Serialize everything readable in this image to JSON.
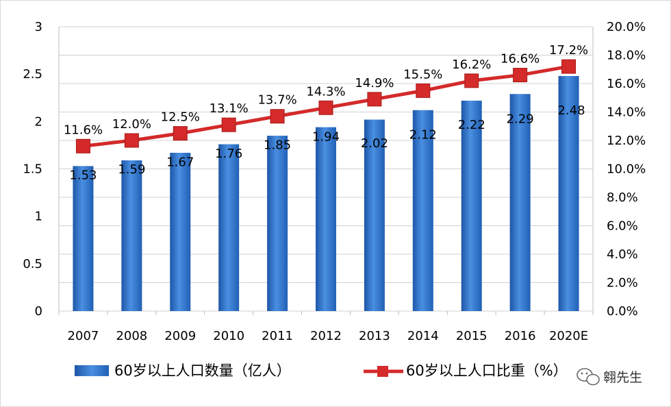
{
  "chart_data": {
    "type": "bar+line",
    "categories": [
      "2007",
      "2008",
      "2009",
      "2010",
      "2011",
      "2012",
      "2013",
      "2014",
      "2015",
      "2016",
      "2020E"
    ],
    "bar_series": {
      "name": "60岁以上人口数量（亿人）",
      "values": [
        1.53,
        1.59,
        1.67,
        1.76,
        1.85,
        1.94,
        2.02,
        2.12,
        2.22,
        2.29,
        2.48
      ],
      "labels": [
        "1.53",
        "1.59",
        "1.67",
        "1.76",
        "1.85",
        "1.94",
        "2.02",
        "2.12",
        "2.22",
        "2.29",
        "2.48"
      ],
      "color": "#2e6bc2"
    },
    "line_series": {
      "name": "60岁以上人口比重（%）",
      "values": [
        11.6,
        12.0,
        12.5,
        13.1,
        13.7,
        14.3,
        14.9,
        15.5,
        16.2,
        16.6,
        17.2
      ],
      "labels": [
        "11.6%",
        "12.0%",
        "12.5%",
        "13.1%",
        "13.7%",
        "14.3%",
        "14.9%",
        "15.5%",
        "16.2%",
        "16.6%",
        "17.2%"
      ],
      "color": "#d42a2a"
    },
    "y_left": {
      "min": 0,
      "max": 3,
      "ticks": [
        "0",
        "0.5",
        "1",
        "1.5",
        "2",
        "2.5",
        "3"
      ]
    },
    "y_right": {
      "min": 0,
      "max": 20,
      "ticks": [
        "0.0%",
        "2.0%",
        "4.0%",
        "6.0%",
        "8.0%",
        "10.0%",
        "12.0%",
        "14.0%",
        "16.0%",
        "18.0%",
        "20.0%"
      ]
    },
    "grid": true,
    "legend_position": "bottom"
  },
  "legend": {
    "bar_label": "60岁以上人口数量（亿人）",
    "line_label": "60岁以上人口比重（%）"
  },
  "watermark": {
    "text": "翱先生"
  }
}
